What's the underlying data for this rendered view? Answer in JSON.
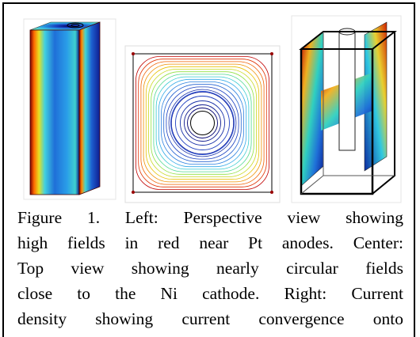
{
  "figure": {
    "caption_lines": [
      "Figure 1. Left:  Perspective view showing",
      "high fields in red near Pt anodes.  Center:",
      "Top view showing nearly circular fields",
      "close to the Ni cathode. Right: Current",
      "density showing current convergence onto"
    ]
  }
}
